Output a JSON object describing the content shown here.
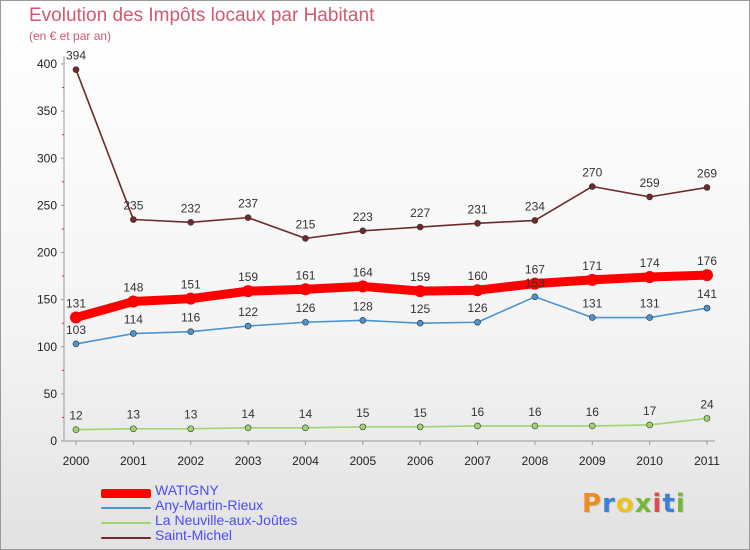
{
  "title": "Evolution des Impôts locaux par Habitant",
  "subtitle": "(en € et par an)",
  "logo": {
    "text": "Proxiti",
    "colors": [
      "#f08c1e",
      "#3d7fd6",
      "#e8c41e",
      "#74b83a",
      "#e04a4a",
      "#3d7fd6",
      "#74b83a"
    ]
  },
  "chart_data": {
    "type": "line",
    "x": [
      "2000",
      "2001",
      "2002",
      "2003",
      "2004",
      "2005",
      "2006",
      "2007",
      "2008",
      "2009",
      "2010",
      "2011"
    ],
    "ylim": [
      0,
      400
    ],
    "yticks": [
      0,
      50,
      100,
      150,
      200,
      250,
      300,
      350,
      400
    ],
    "grid": false,
    "legend_position": "bottom-left",
    "series": [
      {
        "name": "WATIGNY",
        "color": "#ff0000",
        "values": [
          131,
          148,
          151,
          159,
          161,
          164,
          159,
          160,
          167,
          171,
          174,
          176
        ],
        "labels": [
          "131",
          "148",
          "151",
          "159",
          "161",
          "164",
          "159",
          "160",
          "167",
          "171",
          "174",
          "176"
        ]
      },
      {
        "name": "Any-Martin-Rieux",
        "color": "#4b93d1",
        "values": [
          103,
          114,
          116,
          122,
          126,
          128,
          125,
          126,
          153,
          131,
          131,
          141
        ],
        "labels": [
          "103",
          "114",
          "116",
          "122",
          "126",
          "128",
          "125",
          "126",
          "153",
          "131",
          "131",
          "141"
        ]
      },
      {
        "name": "La Neuville-aux-Joûtes",
        "color": "#9ed56e",
        "values": [
          12,
          13,
          13,
          14,
          14,
          15,
          15,
          16,
          16,
          16,
          17,
          24
        ],
        "labels": [
          "12",
          "13",
          "13",
          "14",
          "14",
          "15",
          "15",
          "16",
          "16",
          "16",
          "17",
          "24"
        ]
      },
      {
        "name": "Saint-Michel",
        "color": "#6e2a2a",
        "values": [
          394,
          235,
          232,
          237,
          215,
          223,
          227,
          231,
          234,
          270,
          259,
          269
        ],
        "labels": [
          "394",
          "235",
          "232",
          "237",
          "215",
          "223",
          "227",
          "231",
          "234",
          "270",
          "259",
          "269"
        ]
      }
    ]
  }
}
